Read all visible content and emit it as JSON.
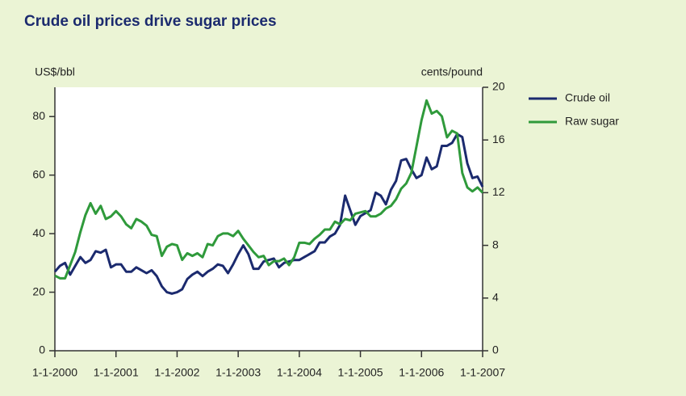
{
  "chart_data": {
    "type": "line",
    "title": "Crude oil prices drive sugar prices",
    "ylabel": "US$/bbl",
    "y2label": "cents/pound",
    "x": [
      2000,
      2000.083,
      2000.167,
      2000.25,
      2000.333,
      2000.417,
      2000.5,
      2000.583,
      2000.667,
      2000.75,
      2000.833,
      2000.917,
      2001,
      2001.083,
      2001.167,
      2001.25,
      2001.333,
      2001.417,
      2001.5,
      2001.583,
      2001.667,
      2001.75,
      2001.833,
      2001.917,
      2002,
      2002.083,
      2002.167,
      2002.25,
      2002.333,
      2002.417,
      2002.5,
      2002.583,
      2002.667,
      2002.75,
      2002.833,
      2002.917,
      2003,
      2003.083,
      2003.167,
      2003.25,
      2003.333,
      2003.417,
      2003.5,
      2003.583,
      2003.667,
      2003.75,
      2003.833,
      2003.917,
      2004,
      2004.083,
      2004.167,
      2004.25,
      2004.333,
      2004.417,
      2004.5,
      2004.583,
      2004.667,
      2004.75,
      2004.833,
      2004.917,
      2005,
      2005.083,
      2005.167,
      2005.25,
      2005.333,
      2005.417,
      2005.5,
      2005.583,
      2005.667,
      2005.75,
      2005.833,
      2005.917,
      2006,
      2006.083,
      2006.167,
      2006.25,
      2006.333,
      2006.417,
      2006.5,
      2006.583,
      2006.667,
      2006.75,
      2006.833,
      2006.917,
      2007
    ],
    "series": [
      {
        "name": "Crude oil",
        "color": "#1b2a6e",
        "axis": "y",
        "values": [
          27,
          29,
          30,
          26,
          29,
          32,
          30,
          31,
          34,
          33.5,
          34.5,
          28.5,
          29.5,
          29.5,
          27,
          27,
          28.5,
          27.5,
          26.5,
          27.5,
          25.5,
          22,
          20,
          19.5,
          20,
          21,
          24.5,
          26,
          27,
          25.5,
          27,
          28,
          29.5,
          29,
          26.5,
          29.5,
          33,
          36,
          33,
          28,
          28,
          30.5,
          31,
          31.5,
          28.5,
          30,
          30.5,
          31,
          31,
          32,
          33,
          34,
          37,
          37,
          39,
          40,
          43,
          53,
          48,
          43,
          46,
          47,
          48,
          54,
          53,
          50,
          55,
          58,
          65,
          65.5,
          62,
          59,
          60,
          66,
          62,
          63,
          70,
          70,
          71,
          74,
          73,
          64,
          59,
          59.5,
          56
        ]
      },
      {
        "name": "Raw sugar",
        "color": "#2f9a3b",
        "axis": "y2",
        "values": [
          5.7,
          5.5,
          5.5,
          6.5,
          7.5,
          9,
          10.3,
          11.2,
          10.4,
          11,
          10,
          10.2,
          10.6,
          10.2,
          9.6,
          9.3,
          10,
          9.8,
          9.5,
          8.8,
          8.7,
          7.2,
          7.9,
          8.1,
          8,
          6.9,
          7.4,
          7.2,
          7.4,
          7.1,
          8.1,
          8,
          8.7,
          8.9,
          8.9,
          8.7,
          9.1,
          8.5,
          8,
          7.5,
          7.1,
          7.2,
          6.5,
          6.8,
          6.8,
          7,
          6.5,
          7.1,
          8.2,
          8.2,
          8.1,
          8.5,
          8.8,
          9.2,
          9.2,
          9.8,
          9.6,
          10,
          9.9,
          10.4,
          10.5,
          10.6,
          10.2,
          10.2,
          10.4,
          10.8,
          11,
          11.5,
          12.3,
          12.7,
          13.5,
          15.5,
          17.5,
          19,
          18,
          18.2,
          17.8,
          16.2,
          16.7,
          16.5,
          13.5,
          12.4,
          12.1,
          12.4,
          12
        ]
      }
    ],
    "xlim": [
      2000,
      2007
    ],
    "xticks": [
      {
        "value": 2000,
        "label": "1-1-2000"
      },
      {
        "value": 2001,
        "label": "1-1-2001"
      },
      {
        "value": 2002,
        "label": "1-1-2002"
      },
      {
        "value": 2003,
        "label": "1-1-2003"
      },
      {
        "value": 2004,
        "label": "1-1-2004"
      },
      {
        "value": 2005,
        "label": "1-1-2005"
      },
      {
        "value": 2006,
        "label": "1-1-2006"
      },
      {
        "value": 2007,
        "label": "1-1-2007"
      }
    ],
    "ylim": [
      0,
      90
    ],
    "yticks": [
      0,
      20,
      40,
      60,
      80
    ],
    "y2lim": [
      0,
      20
    ],
    "y2ticks": [
      0,
      4,
      8,
      12,
      16,
      20
    ],
    "legend": "right"
  }
}
